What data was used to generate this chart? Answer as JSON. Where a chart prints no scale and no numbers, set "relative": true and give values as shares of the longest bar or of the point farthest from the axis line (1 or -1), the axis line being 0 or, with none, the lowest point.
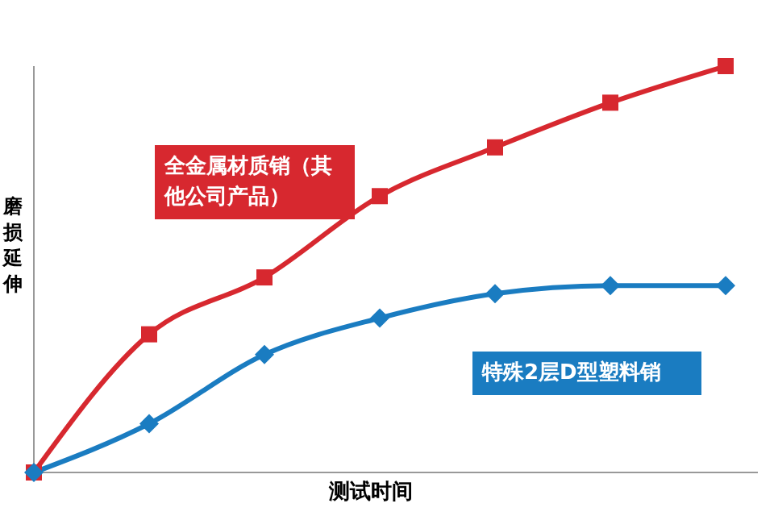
{
  "chart_data": {
    "type": "line",
    "xlabel": "测试时间",
    "ylabel": "磨损延伸",
    "relative": true,
    "legend": false,
    "grid": false,
    "categories": [
      null,
      null,
      null,
      null,
      null,
      null,
      null
    ],
    "series": [
      {
        "name": "全金属材质销（其他公司产品）",
        "color": "#d7282f",
        "marker": "square",
        "values": [
          0,
          0.34,
          0.48,
          0.68,
          0.8,
          0.91,
          1
        ]
      },
      {
        "name": "特殊2层D型塑料销",
        "color": "#1a7cc1",
        "marker": "diamond",
        "values": [
          0,
          0.12,
          0.29,
          0.38,
          0.44,
          0.46,
          0.46
        ]
      }
    ]
  }
}
